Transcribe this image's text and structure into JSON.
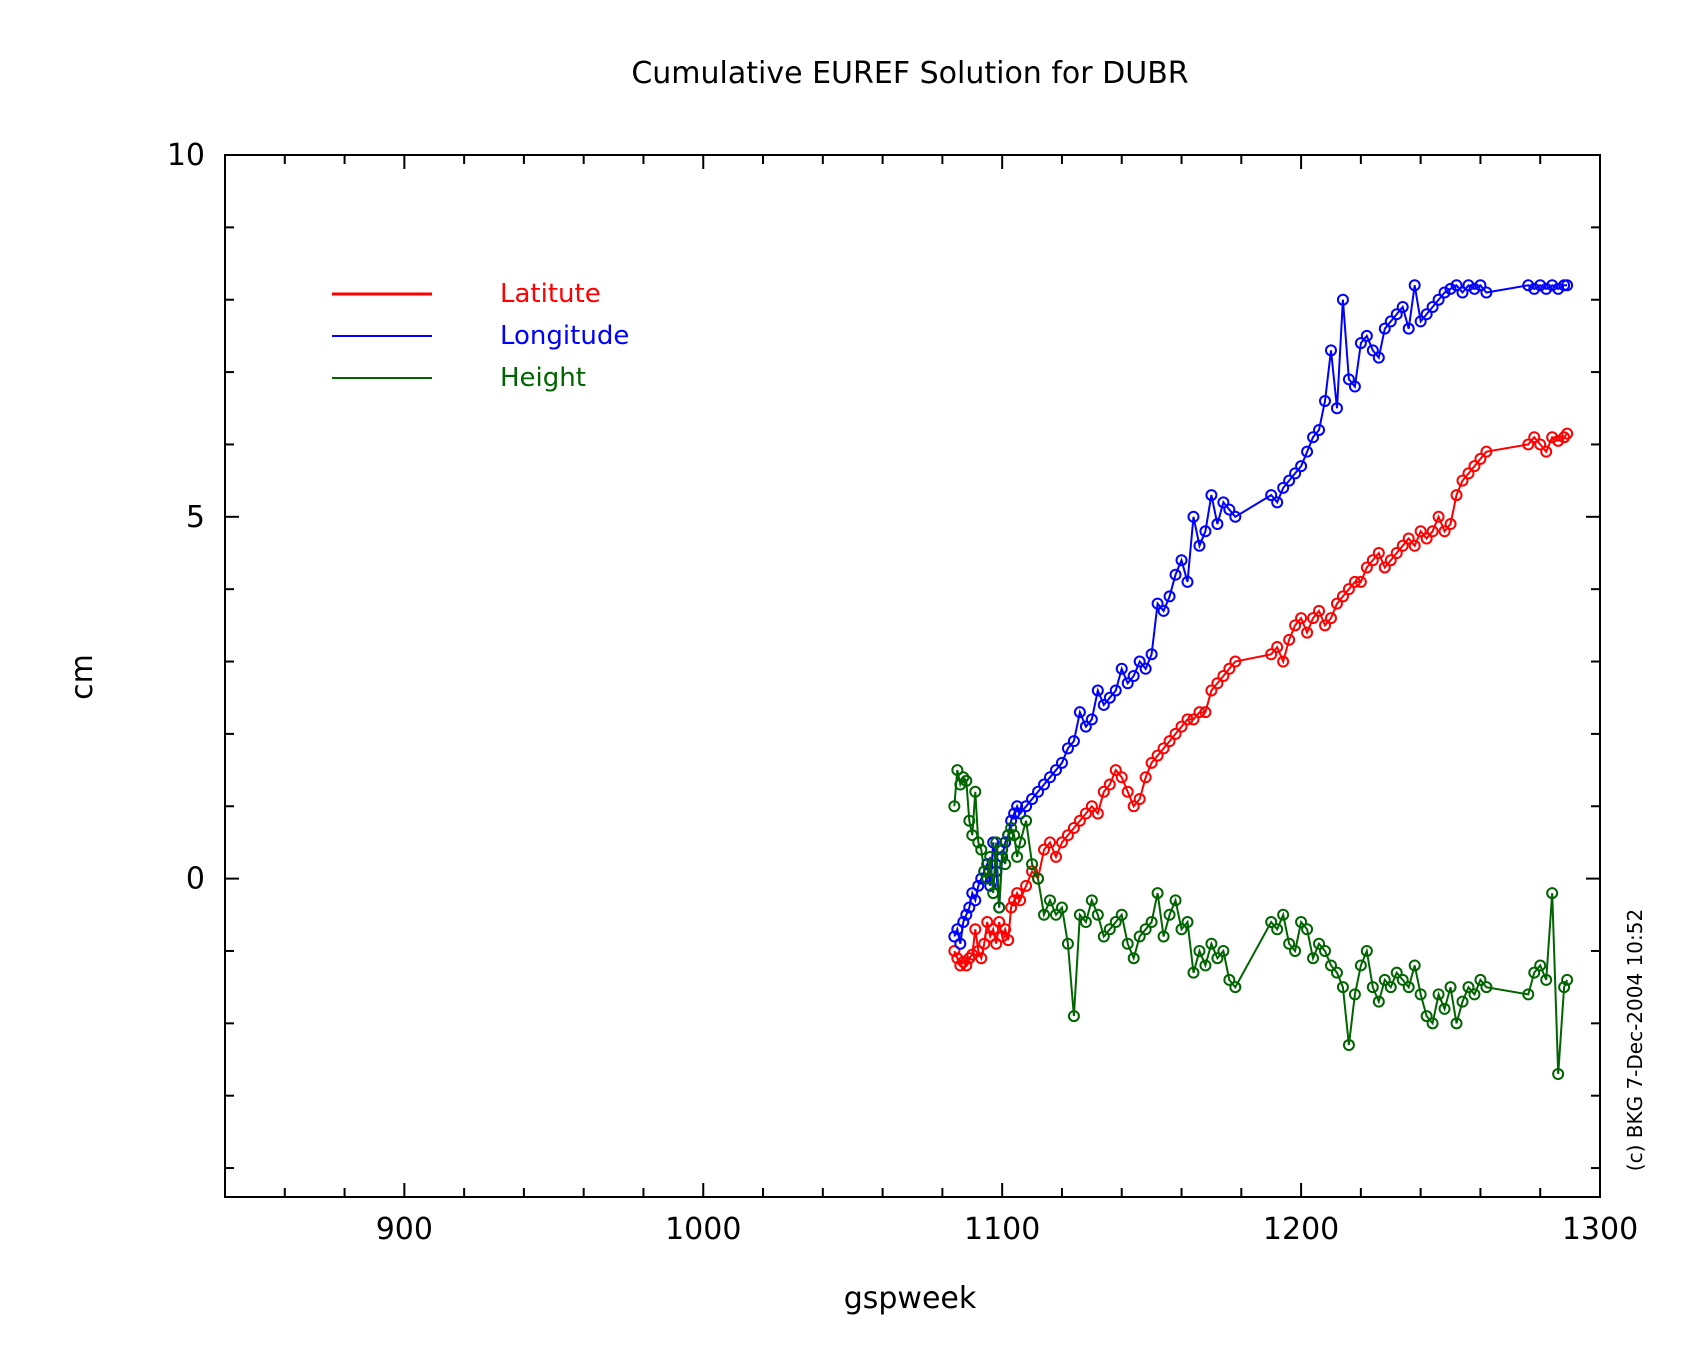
{
  "chart_data": {
    "type": "line",
    "title": "Cumulative EUREF Solution for DUBR",
    "xlabel": "gspweek",
    "ylabel": "cm",
    "xlim": [
      840,
      1300
    ],
    "ylim": [
      -4.4,
      10
    ],
    "x_ticks": [
      900,
      1000,
      1100,
      1200,
      1300
    ],
    "y_ticks": [
      0,
      5,
      10
    ],
    "grid": false,
    "legend_position": "top-left",
    "footer_note": "(c) BKG 7-Dec-2004 10:52",
    "series": [
      {
        "name": "Latitute",
        "color": "#ff0000",
        "x": [
          1084,
          1085,
          1086,
          1087,
          1088,
          1089,
          1090,
          1091,
          1092,
          1093,
          1094,
          1095,
          1096,
          1097,
          1098,
          1099,
          1100,
          1101,
          1102,
          1103,
          1104,
          1105,
          1106,
          1108,
          1110,
          1112,
          1114,
          1116,
          1118,
          1120,
          1122,
          1124,
          1126,
          1128,
          1130,
          1132,
          1134,
          1136,
          1138,
          1140,
          1142,
          1144,
          1146,
          1148,
          1150,
          1152,
          1154,
          1156,
          1158,
          1160,
          1162,
          1164,
          1166,
          1168,
          1170,
          1172,
          1174,
          1176,
          1178,
          1190,
          1192,
          1194,
          1196,
          1198,
          1200,
          1202,
          1204,
          1206,
          1208,
          1210,
          1212,
          1214,
          1216,
          1218,
          1220,
          1222,
          1224,
          1226,
          1228,
          1230,
          1232,
          1234,
          1236,
          1238,
          1240,
          1242,
          1244,
          1246,
          1248,
          1250,
          1252,
          1254,
          1256,
          1258,
          1260,
          1262,
          1276,
          1278,
          1280,
          1282,
          1284,
          1286,
          1288,
          1289
        ],
        "y": [
          -1.0,
          -1.1,
          -1.2,
          -1.15,
          -1.2,
          -1.1,
          -1.05,
          -0.7,
          -1.0,
          -1.1,
          -0.9,
          -0.6,
          -0.8,
          -0.7,
          -0.9,
          -0.6,
          -0.8,
          -0.7,
          -0.85,
          -0.4,
          -0.3,
          -0.2,
          -0.3,
          -0.1,
          0.1,
          0.0,
          0.4,
          0.5,
          0.3,
          0.5,
          0.6,
          0.7,
          0.8,
          0.9,
          1.0,
          0.9,
          1.2,
          1.3,
          1.5,
          1.4,
          1.2,
          1.0,
          1.1,
          1.4,
          1.6,
          1.7,
          1.8,
          1.9,
          2.0,
          2.1,
          2.2,
          2.2,
          2.3,
          2.3,
          2.6,
          2.7,
          2.8,
          2.9,
          3.0,
          3.1,
          3.2,
          3.0,
          3.3,
          3.5,
          3.6,
          3.4,
          3.6,
          3.7,
          3.5,
          3.6,
          3.8,
          3.9,
          4.0,
          4.1,
          4.1,
          4.3,
          4.4,
          4.5,
          4.3,
          4.4,
          4.5,
          4.6,
          4.7,
          4.6,
          4.8,
          4.7,
          4.8,
          5.0,
          4.8,
          4.9,
          5.3,
          5.5,
          5.6,
          5.7,
          5.8,
          5.9,
          6.0,
          6.1,
          6.0,
          5.9,
          6.1,
          6.05,
          6.1,
          6.15
        ]
      },
      {
        "name": "Longitude",
        "color": "#0000ff",
        "x": [
          1084,
          1085,
          1086,
          1087,
          1088,
          1089,
          1090,
          1091,
          1092,
          1093,
          1094,
          1095,
          1096,
          1097,
          1098,
          1099,
          1100,
          1101,
          1102,
          1103,
          1104,
          1105,
          1106,
          1108,
          1110,
          1112,
          1114,
          1116,
          1118,
          1120,
          1122,
          1124,
          1126,
          1128,
          1130,
          1132,
          1134,
          1136,
          1138,
          1140,
          1142,
          1144,
          1146,
          1148,
          1150,
          1152,
          1154,
          1156,
          1158,
          1160,
          1162,
          1164,
          1166,
          1168,
          1170,
          1172,
          1174,
          1176,
          1178,
          1190,
          1192,
          1194,
          1196,
          1198,
          1200,
          1202,
          1204,
          1206,
          1208,
          1210,
          1212,
          1214,
          1216,
          1218,
          1220,
          1222,
          1224,
          1226,
          1228,
          1230,
          1232,
          1234,
          1236,
          1238,
          1240,
          1242,
          1244,
          1246,
          1248,
          1250,
          1252,
          1254,
          1256,
          1258,
          1260,
          1262,
          1276,
          1278,
          1280,
          1282,
          1284,
          1286,
          1288,
          1289
        ],
        "y": [
          -0.8,
          -0.7,
          -0.9,
          -0.6,
          -0.5,
          -0.4,
          -0.2,
          -0.3,
          -0.1,
          0.0,
          0.1,
          0.2,
          -0.1,
          0.5,
          0.1,
          -0.4,
          0.3,
          0.5,
          0.6,
          0.8,
          0.9,
          1.0,
          0.9,
          1.0,
          1.1,
          1.2,
          1.3,
          1.4,
          1.5,
          1.6,
          1.8,
          1.9,
          2.3,
          2.1,
          2.2,
          2.6,
          2.4,
          2.5,
          2.6,
          2.9,
          2.7,
          2.8,
          3.0,
          2.9,
          3.1,
          3.8,
          3.7,
          3.9,
          4.2,
          4.4,
          4.1,
          5.0,
          4.6,
          4.8,
          5.3,
          4.9,
          5.2,
          5.1,
          5.0,
          5.3,
          5.2,
          5.4,
          5.5,
          5.6,
          5.7,
          5.9,
          6.1,
          6.2,
          6.6,
          7.3,
          6.5,
          8.0,
          6.9,
          6.8,
          7.4,
          7.5,
          7.3,
          7.2,
          7.6,
          7.7,
          7.8,
          7.9,
          7.6,
          8.2,
          7.7,
          7.8,
          7.9,
          8.0,
          8.1,
          8.15,
          8.2,
          8.1,
          8.2,
          8.15,
          8.2,
          8.1,
          8.2,
          8.15,
          8.2,
          8.15,
          8.2,
          8.15,
          8.2,
          8.2
        ]
      },
      {
        "name": "Height",
        "color": "#006400",
        "x": [
          1084,
          1085,
          1086,
          1087,
          1088,
          1089,
          1090,
          1091,
          1092,
          1093,
          1094,
          1095,
          1096,
          1097,
          1098,
          1099,
          1100,
          1101,
          1102,
          1103,
          1104,
          1105,
          1106,
          1108,
          1110,
          1112,
          1114,
          1116,
          1118,
          1120,
          1122,
          1124,
          1126,
          1128,
          1130,
          1132,
          1134,
          1136,
          1138,
          1140,
          1142,
          1144,
          1146,
          1148,
          1150,
          1152,
          1154,
          1156,
          1158,
          1160,
          1162,
          1164,
          1166,
          1168,
          1170,
          1172,
          1174,
          1176,
          1178,
          1190,
          1192,
          1194,
          1196,
          1198,
          1200,
          1202,
          1204,
          1206,
          1208,
          1210,
          1212,
          1214,
          1216,
          1218,
          1220,
          1222,
          1224,
          1226,
          1228,
          1230,
          1232,
          1234,
          1236,
          1238,
          1240,
          1242,
          1244,
          1246,
          1248,
          1250,
          1252,
          1254,
          1256,
          1258,
          1260,
          1262,
          1276,
          1278,
          1280,
          1282,
          1284,
          1286,
          1288,
          1289
        ],
        "y": [
          1.0,
          1.5,
          1.3,
          1.4,
          1.35,
          0.8,
          0.6,
          1.2,
          0.5,
          0.4,
          0.1,
          0.0,
          0.3,
          -0.2,
          0.5,
          -0.4,
          0.4,
          0.2,
          0.6,
          0.7,
          0.6,
          0.3,
          0.5,
          0.8,
          0.2,
          0.0,
          -0.5,
          -0.3,
          -0.5,
          -0.4,
          -0.9,
          -1.9,
          -0.5,
          -0.6,
          -0.3,
          -0.5,
          -0.8,
          -0.7,
          -0.6,
          -0.5,
          -0.9,
          -1.1,
          -0.8,
          -0.7,
          -0.6,
          -0.2,
          -0.8,
          -0.5,
          -0.3,
          -0.7,
          -0.6,
          -1.3,
          -1.0,
          -1.2,
          -0.9,
          -1.1,
          -1.0,
          -1.4,
          -1.5,
          -0.6,
          -0.7,
          -0.5,
          -0.9,
          -1.0,
          -0.6,
          -0.7,
          -1.1,
          -0.9,
          -1.0,
          -1.2,
          -1.3,
          -1.5,
          -2.3,
          -1.6,
          -1.2,
          -1.0,
          -1.5,
          -1.7,
          -1.4,
          -1.5,
          -1.3,
          -1.4,
          -1.5,
          -1.2,
          -1.6,
          -1.9,
          -2.0,
          -1.6,
          -1.8,
          -1.5,
          -2.0,
          -1.7,
          -1.5,
          -1.6,
          -1.4,
          -1.5,
          -1.6,
          -1.3,
          -1.2,
          -1.4,
          -0.2,
          -2.7,
          -1.5,
          -1.4
        ]
      }
    ]
  }
}
